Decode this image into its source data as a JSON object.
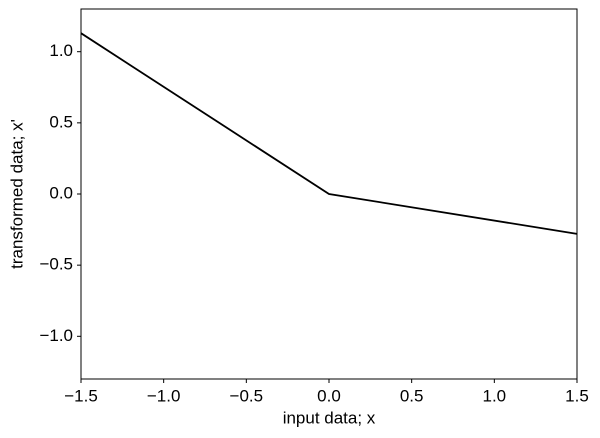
{
  "chart_data": {
    "type": "line",
    "x_label": "input data; x",
    "y_label": "transformed data; x'",
    "x": [
      -1.5,
      0,
      1.5
    ],
    "values": [
      1.13,
      0,
      -0.28
    ],
    "color": "#000000",
    "xlim": [
      -1.5,
      1.5
    ],
    "ylim": [
      -1.3,
      1.3
    ],
    "xticks": [
      {
        "value": -1.5,
        "label": "−1.5"
      },
      {
        "value": -1,
        "label": "−1.0"
      },
      {
        "value": -0.5,
        "label": "−0.5"
      },
      {
        "value": 0,
        "label": "0.0"
      },
      0.5,
      {
        "value": 1,
        "label": "1.0"
      },
      1.5
    ],
    "yticks": [
      {
        "value": -1,
        "label": "−1.0"
      },
      {
        "value": -0.5,
        "label": "−0.5"
      },
      {
        "value": 0,
        "label": "0.0"
      },
      0.5,
      {
        "value": 1,
        "label": "1.0"
      }
    ],
    "grid": false
  }
}
